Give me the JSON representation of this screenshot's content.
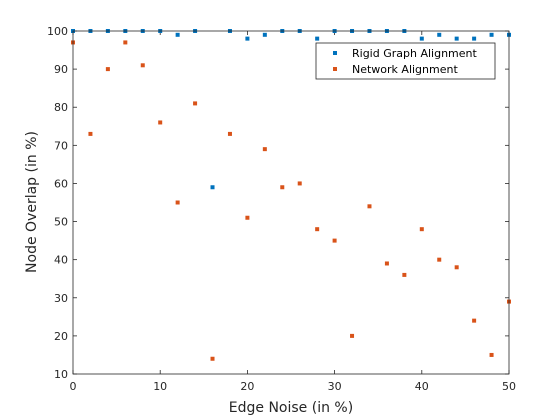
{
  "chart_data": {
    "type": "scatter",
    "title": "",
    "xlabel": "Edge Noise (in %)",
    "ylabel": "Node Overlap (in %)",
    "xlim": [
      0,
      50
    ],
    "ylim": [
      10,
      100
    ],
    "xticks": [
      "0",
      "10",
      "20",
      "30",
      "40",
      "50"
    ],
    "yticks": [
      "10",
      "20",
      "30",
      "40",
      "50",
      "60",
      "70",
      "80",
      "90",
      "100"
    ],
    "grid": false,
    "legend_position": "top-right",
    "series": [
      {
        "name": "Rigid Graph Alignment",
        "color": "#0072BD",
        "x": [
          0,
          2,
          4,
          6,
          8,
          10,
          12,
          14,
          16,
          18,
          20,
          22,
          24,
          26,
          28,
          30,
          32,
          34,
          36,
          38,
          40,
          42,
          44,
          46,
          48,
          50
        ],
        "y": [
          100,
          100,
          100,
          100,
          100,
          100,
          99,
          100,
          59,
          100,
          98,
          99,
          100,
          100,
          98,
          100,
          100,
          100,
          100,
          100,
          98,
          99,
          98,
          98,
          99,
          99
        ]
      },
      {
        "name": "Network Alignment",
        "color": "#D95319",
        "x": [
          0,
          2,
          4,
          6,
          8,
          10,
          12,
          14,
          16,
          18,
          20,
          22,
          24,
          26,
          28,
          30,
          32,
          34,
          36,
          38,
          40,
          42,
          44,
          46,
          48,
          50
        ],
        "y": [
          97,
          73,
          90,
          97,
          91,
          76,
          55,
          81,
          14,
          73,
          51,
          69,
          59,
          60,
          48,
          45,
          20,
          54,
          39,
          36,
          48,
          40,
          38,
          24,
          15,
          29
        ]
      }
    ]
  }
}
